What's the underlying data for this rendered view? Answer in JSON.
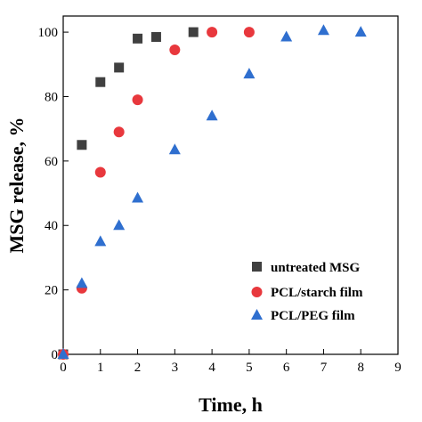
{
  "chart_data": {
    "type": "scatter",
    "xlabel": "Time, h",
    "ylabel": "MSG release, %",
    "xlim": [
      0,
      9
    ],
    "ylim": [
      0,
      105
    ],
    "x_ticks": [
      0,
      1,
      2,
      3,
      4,
      5,
      6,
      7,
      8,
      9
    ],
    "y_ticks": [
      0,
      20,
      40,
      60,
      80,
      100
    ],
    "grid": false,
    "legend_position": "bottom-right",
    "series": [
      {
        "name": "untreated MSG",
        "marker": "square",
        "color": "#404040",
        "points": [
          [
            0,
            0
          ],
          [
            0.5,
            65
          ],
          [
            1,
            84.5
          ],
          [
            1.5,
            89
          ],
          [
            2,
            98
          ],
          [
            2.5,
            98.5
          ],
          [
            3.5,
            100
          ]
        ]
      },
      {
        "name": "PCL/starch film",
        "marker": "circle",
        "color": "#e8383d",
        "points": [
          [
            0,
            0
          ],
          [
            0.5,
            20.5
          ],
          [
            1,
            56.5
          ],
          [
            1.5,
            69
          ],
          [
            2,
            79
          ],
          [
            3,
            94.5
          ],
          [
            4,
            100
          ],
          [
            5,
            100
          ]
        ]
      },
      {
        "name": "PCL/PEG film",
        "marker": "triangle",
        "color": "#2f6fcf",
        "points": [
          [
            0,
            0
          ],
          [
            0.5,
            22
          ],
          [
            1,
            35
          ],
          [
            1.5,
            40
          ],
          [
            2,
            48.5
          ],
          [
            3,
            63.5
          ],
          [
            4,
            74
          ],
          [
            5,
            87
          ],
          [
            6,
            98.5
          ],
          [
            7,
            100.5
          ],
          [
            8,
            100
          ]
        ]
      }
    ]
  }
}
